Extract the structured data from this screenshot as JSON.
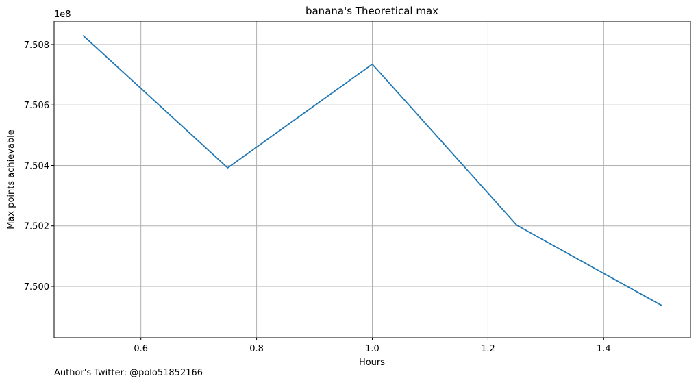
{
  "chart_data": {
    "type": "line",
    "title": "banana's Theoretical max",
    "xlabel": "Hours",
    "ylabel": "Max points achievable",
    "y_offset_label": "1e8",
    "x": [
      0.5,
      0.75,
      1.0,
      1.25,
      1.5
    ],
    "series": [
      {
        "values": [
          750830000,
          750392000,
          750735000,
          750202000,
          749937000
        ],
        "color": "#1f77b4"
      }
    ],
    "xlim": [
      0.45,
      1.55
    ],
    "ylim": [
      749830000,
      750877000
    ],
    "x_ticks": [
      0.6,
      0.8,
      1.0,
      1.2,
      1.4
    ],
    "x_tick_labels": [
      "0.6",
      "0.8",
      "1.0",
      "1.2",
      "1.4"
    ],
    "y_ticks": [
      750000000,
      750200000,
      750400000,
      750600000,
      750800000
    ],
    "y_tick_labels": [
      "7.500",
      "7.502",
      "7.504",
      "7.506",
      "7.508"
    ],
    "grid": true
  },
  "footer": {
    "credit": "Author's Twitter: @polo51852166"
  }
}
